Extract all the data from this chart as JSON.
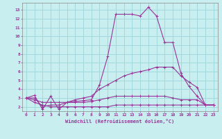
{
  "title": "",
  "xlabel": "Windchill (Refroidissement éolien,°C)",
  "background_color": "#c8eef0",
  "grid_color": "#a0d8dc",
  "line_color": "#993399",
  "spine_color": "#888888",
  "xlim": [
    -0.5,
    23.5
  ],
  "ylim": [
    1.5,
    13.8
  ],
  "xticks": [
    0,
    1,
    2,
    3,
    4,
    5,
    6,
    7,
    8,
    9,
    10,
    11,
    12,
    13,
    14,
    15,
    16,
    17,
    18,
    19,
    20,
    21,
    22,
    23
  ],
  "yticks": [
    2,
    3,
    4,
    5,
    6,
    7,
    8,
    9,
    10,
    11,
    12,
    13
  ],
  "lines": [
    {
      "x": [
        0,
        1,
        2,
        3,
        4,
        5,
        6,
        7,
        8,
        9,
        10,
        11,
        12,
        13,
        14,
        15,
        16,
        17,
        18,
        19,
        20,
        21,
        22,
        23
      ],
      "y": [
        3.0,
        3.3,
        1.7,
        3.2,
        1.7,
        2.5,
        2.6,
        2.7,
        2.8,
        4.5,
        7.7,
        12.5,
        12.5,
        12.5,
        12.3,
        13.3,
        12.3,
        9.3,
        9.3,
        5.8,
        4.3,
        3.2,
        2.2,
        2.2
      ]
    },
    {
      "x": [
        0,
        1,
        2,
        3,
        4,
        5,
        6,
        7,
        8,
        9,
        10,
        11,
        12,
        13,
        14,
        15,
        16,
        17,
        18,
        19,
        20,
        21,
        22,
        23
      ],
      "y": [
        3.0,
        3.0,
        2.0,
        2.2,
        2.2,
        2.5,
        2.8,
        3.0,
        3.2,
        4.0,
        4.5,
        5.0,
        5.5,
        5.8,
        6.0,
        6.2,
        6.5,
        6.5,
        6.5,
        5.5,
        4.8,
        4.2,
        2.2,
        2.2
      ]
    },
    {
      "x": [
        0,
        1,
        2,
        3,
        4,
        5,
        6,
        7,
        8,
        9,
        10,
        11,
        12,
        13,
        14,
        15,
        16,
        17,
        18,
        19,
        20,
        21,
        22,
        23
      ],
      "y": [
        3.0,
        2.8,
        2.5,
        2.5,
        2.5,
        2.5,
        2.5,
        2.5,
        2.6,
        2.8,
        3.0,
        3.2,
        3.2,
        3.2,
        3.2,
        3.2,
        3.2,
        3.2,
        3.0,
        2.8,
        2.8,
        2.8,
        2.2,
        2.2
      ]
    },
    {
      "x": [
        0,
        1,
        2,
        3,
        4,
        5,
        6,
        7,
        8,
        9,
        10,
        11,
        12,
        13,
        14,
        15,
        16,
        17,
        18,
        19,
        20,
        21,
        22,
        23
      ],
      "y": [
        3.0,
        2.5,
        2.2,
        2.0,
        2.0,
        2.0,
        2.0,
        2.0,
        2.0,
        2.0,
        2.0,
        2.2,
        2.2,
        2.2,
        2.2,
        2.2,
        2.2,
        2.2,
        2.2,
        2.2,
        2.2,
        2.2,
        2.2,
        2.2
      ]
    }
  ]
}
